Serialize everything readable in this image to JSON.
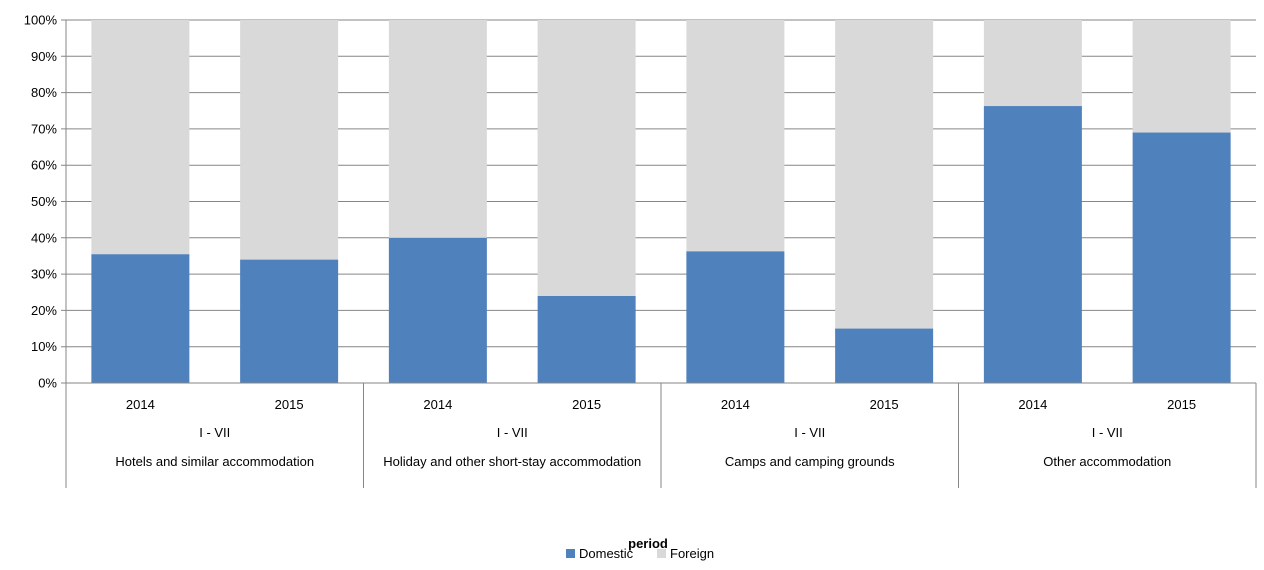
{
  "chart_data": {
    "type": "bar",
    "stacked": "percent",
    "title": "",
    "xlabel": "period",
    "ylabel": "",
    "ylim": [
      0,
      100
    ],
    "y_ticks": [
      "0%",
      "10%",
      "20%",
      "30%",
      "40%",
      "50%",
      "60%",
      "70%",
      "80%",
      "90%",
      "100%"
    ],
    "grid": true,
    "legend_position": "bottom",
    "groups": [
      {
        "label": "Hotels and similar  accommodation",
        "period": "I - VII",
        "years": [
          "2014",
          "2015"
        ]
      },
      {
        "label": "Holiday and other short-stay accommodation",
        "period": "I - VII",
        "years": [
          "2014",
          "2015"
        ]
      },
      {
        "label": "Camps and camping grounds",
        "period": "I - VII",
        "years": [
          "2014",
          "2015"
        ]
      },
      {
        "label": "Other accommodation",
        "period": "I - VII",
        "years": [
          "2014",
          "2015"
        ]
      }
    ],
    "series": [
      {
        "name": "Domestic",
        "color": "#4f81bd",
        "values": [
          35.5,
          34,
          40,
          24,
          36.3,
          15,
          76.3,
          69
        ]
      },
      {
        "name": "Foreign",
        "color": "#d9d9d9",
        "values": [
          64.5,
          66,
          60,
          76,
          63.7,
          85,
          23.7,
          31
        ]
      }
    ]
  }
}
